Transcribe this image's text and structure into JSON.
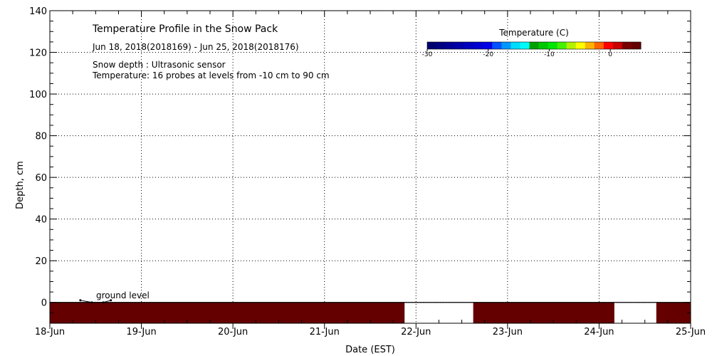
{
  "chart_data": {
    "type": "heatmap",
    "title": "Temperature Profile in the Snow Pack",
    "subtitle": "Jun 18, 2018(2018169) - Jun 25, 2018(2018176)",
    "notes": [
      "Snow depth : Ultrasonic sensor",
      "Temperature: 16 probes at levels from -10 cm to 90 cm"
    ],
    "xlabel": "Date (EST)",
    "ylabel": "Depth, cm",
    "x_ticks": [
      "18-Jun",
      "19-Jun",
      "20-Jun",
      "21-Jun",
      "22-Jun",
      "23-Jun",
      "24-Jun",
      "25-Jun"
    ],
    "xlim": [
      "2018-06-18",
      "2018-06-25"
    ],
    "ylim": [
      -10,
      140
    ],
    "y_ticks": [
      0,
      20,
      40,
      60,
      80,
      100,
      120,
      140
    ],
    "grid": true,
    "annotation": "ground level",
    "colorbar": {
      "label": "Temperature (C)",
      "range": [
        -30,
        5
      ],
      "ticks": [
        -30,
        -20,
        -10,
        0
      ],
      "colors": [
        "#00006e",
        "#000082",
        "#000096",
        "#0000aa",
        "#0000be",
        "#0000d2",
        "#0000e6",
        "#0050ff",
        "#0096ff",
        "#00dcff",
        "#00fafa",
        "#00a000",
        "#00c800",
        "#00e600",
        "#46f000",
        "#b4f000",
        "#ffff00",
        "#ffb400",
        "#ff6400",
        "#ff0000",
        "#c80000",
        "#780000",
        "#640000"
      ]
    },
    "bands": [
      {
        "start": "2018-06-18 00:00",
        "end": "2018-06-21 21:00",
        "depth_top": 0,
        "depth_bottom": -10,
        "temperature": 5,
        "color": "#640000"
      },
      {
        "start": "2018-06-22 15:00",
        "end": "2018-06-24 04:00",
        "depth_top": 0,
        "depth_bottom": -10,
        "temperature": 5,
        "color": "#640000"
      },
      {
        "start": "2018-06-24 15:00",
        "end": "2018-06-25 00:00",
        "depth_top": 0,
        "depth_bottom": -10,
        "temperature": 5,
        "color": "#640000"
      }
    ],
    "snow_depth_trace": [
      {
        "x": "2018-06-18 08:00",
        "y": 1
      },
      {
        "x": "2018-06-18 11:00",
        "y": 0
      },
      {
        "x": "2018-06-18 14:00",
        "y": 0
      },
      {
        "x": "2018-06-18 16:00",
        "y": 1
      }
    ]
  }
}
